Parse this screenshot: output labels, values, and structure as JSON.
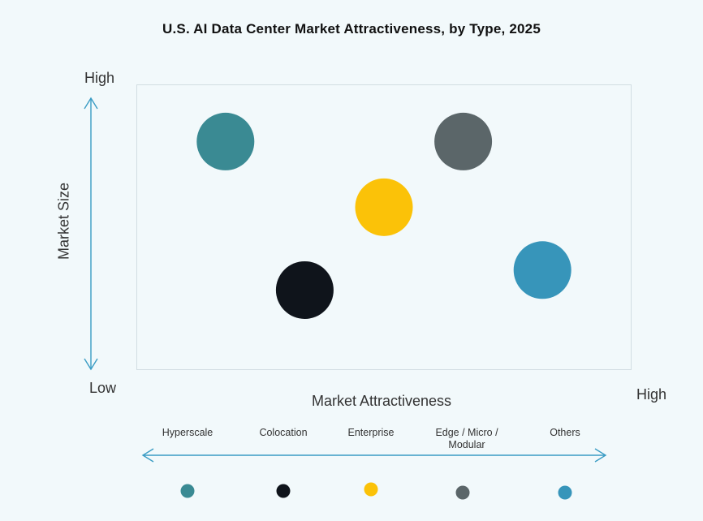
{
  "title": "U.S. AI Data Center Market Attractiveness,  by Type, 2025",
  "axes": {
    "y_high": "High",
    "y_low": "Low",
    "x_high": "High",
    "y_label": "Market Size",
    "x_label": "Market Attractiveness"
  },
  "chart_data": {
    "type": "scatter",
    "title": "U.S. AI Data Center Market Attractiveness,  by Type, 2025",
    "xlabel": "Market Attractiveness",
    "ylabel": "Market Size",
    "xlim": [
      0,
      100
    ],
    "ylim": [
      0,
      100
    ],
    "grid": false,
    "legend_position": "bottom",
    "series": [
      {
        "name": "Hyperscale",
        "x": 18,
        "y": 80,
        "color": "#3a8a93"
      },
      {
        "name": "Colocation",
        "x": 34,
        "y": 28,
        "color": "#0f141b"
      },
      {
        "name": "Enterprise",
        "x": 50,
        "y": 57,
        "color": "#fbc208"
      },
      {
        "name": "Edge / Micro / Modular",
        "x": 66,
        "y": 80,
        "color": "#5b6669"
      },
      {
        "name": "Others",
        "x": 82,
        "y": 35,
        "color": "#3795ba"
      }
    ]
  }
}
